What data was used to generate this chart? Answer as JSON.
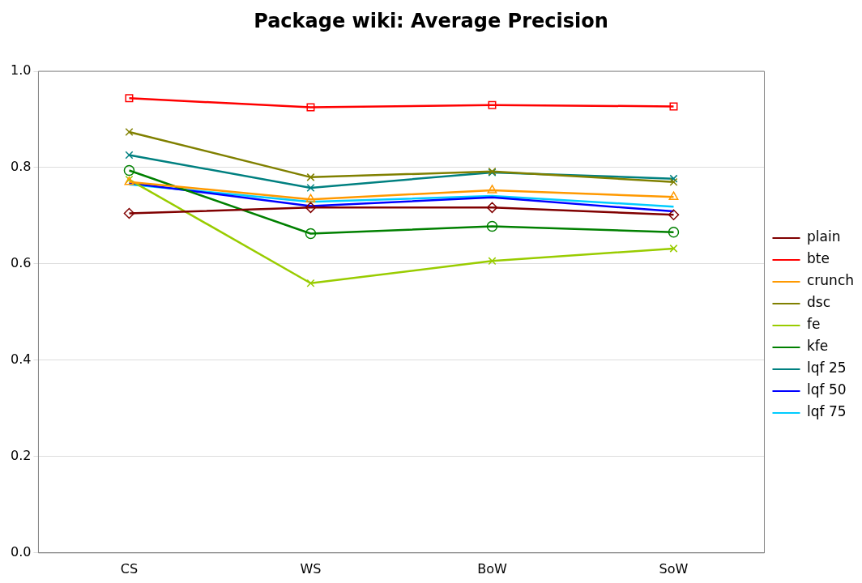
{
  "chart_data": {
    "type": "line",
    "title": "Package wiki: Average Precision",
    "categories": [
      "CS",
      "WS",
      "BoW",
      "SoW"
    ],
    "series": [
      {
        "name": "plain",
        "color": "#800000",
        "marker": "diamond",
        "values": [
          0.705,
          0.717,
          0.717,
          0.702
        ]
      },
      {
        "name": "bte",
        "color": "#ff0000",
        "marker": "square",
        "values": [
          0.944,
          0.925,
          0.93,
          0.927
        ]
      },
      {
        "name": "crunch",
        "color": "#ff9900",
        "marker": "triangle",
        "values": [
          0.77,
          0.734,
          0.753,
          0.739
        ]
      },
      {
        "name": "dsc",
        "color": "#808000",
        "marker": "cross",
        "values": [
          0.874,
          0.78,
          0.792,
          0.77
        ]
      },
      {
        "name": "fe",
        "color": "#99cc00",
        "marker": "cross",
        "values": [
          0.775,
          0.56,
          0.606,
          0.632
        ]
      },
      {
        "name": "kfe",
        "color": "#008000",
        "marker": "circle",
        "values": [
          0.794,
          0.663,
          0.678,
          0.666
        ]
      },
      {
        "name": "lqf 25",
        "color": "#008080",
        "marker": "cross",
        "values": [
          0.826,
          0.758,
          0.79,
          0.777
        ]
      },
      {
        "name": "lqf 50",
        "color": "#0000ff",
        "marker": "none",
        "values": [
          0.768,
          0.72,
          0.738,
          0.709
        ]
      },
      {
        "name": "lqf 75",
        "color": "#00ccff",
        "marker": "none",
        "values": [
          0.765,
          0.729,
          0.741,
          0.719
        ]
      }
    ],
    "ylim": [
      0,
      1
    ],
    "yticks": [
      {
        "value": 0,
        "label": "0.0"
      },
      {
        "value": 0.2,
        "label": "0.2"
      },
      {
        "value": 0.4,
        "label": "0.4"
      },
      {
        "value": 0.6,
        "label": "0.6"
      },
      {
        "value": 0.8,
        "label": "0.8"
      },
      {
        "value": 1,
        "label": "1.0"
      }
    ],
    "grid": "y",
    "legend": "right",
    "line_style": "solid"
  }
}
